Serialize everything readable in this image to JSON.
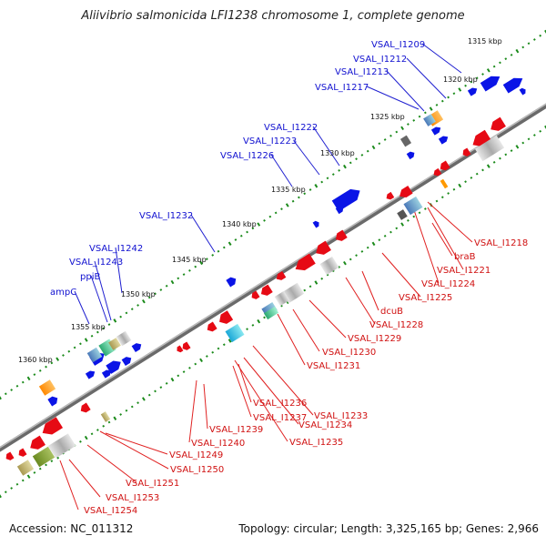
{
  "title": "Aliivibrio salmonicida LFI1238 chromosome 1, complete genome",
  "footer": {
    "accession": "Accession: NC_011312",
    "summary": "Topology: circular; Length: 3,325,165 bp; Genes: 2,966"
  },
  "colors": {
    "forward_gene": "#0a14e6",
    "reverse_gene": "#e60a14",
    "backbone": "#888888",
    "tick": "#1a8a1a",
    "feature_orange": "#ff9900",
    "feature_teal": "#3aa0c0",
    "feature_grey": "#bbbbbb"
  },
  "scale_ticks": [
    "1315 kbp",
    "1320 kbp",
    "1325 kbp",
    "1330 kbp",
    "1335 kbp",
    "1340 kbp",
    "1345 kbp",
    "1350 kbp",
    "1355 kbp",
    "1360 kbp"
  ],
  "forward_labels": [
    "VSAL_I1209",
    "VSAL_I1212",
    "VSAL_I1213",
    "VSAL_I1217",
    "VSAL_I1222",
    "VSAL_I1223",
    "VSAL_I1226",
    "VSAL_I1232",
    "VSAL_I1242",
    "VSAL_I1243",
    "ppiB",
    "ampC"
  ],
  "reverse_labels": [
    "VSAL_I1218",
    "braB",
    "VSAL_I1221",
    "VSAL_I1224",
    "VSAL_I1225",
    "dcuB",
    "VSAL_I1228",
    "VSAL_I1229",
    "VSAL_I1230",
    "VSAL_I1231",
    "VSAL_I1233",
    "VSAL_I1234",
    "VSAL_I1235",
    "VSAL_I1236",
    "VSAL_I1237",
    "VSAL_I1239",
    "VSAL_I1240",
    "VSAL_I1249",
    "VSAL_I1250",
    "VSAL_I1251",
    "VSAL_I1253",
    "VSAL_I1254"
  ]
}
